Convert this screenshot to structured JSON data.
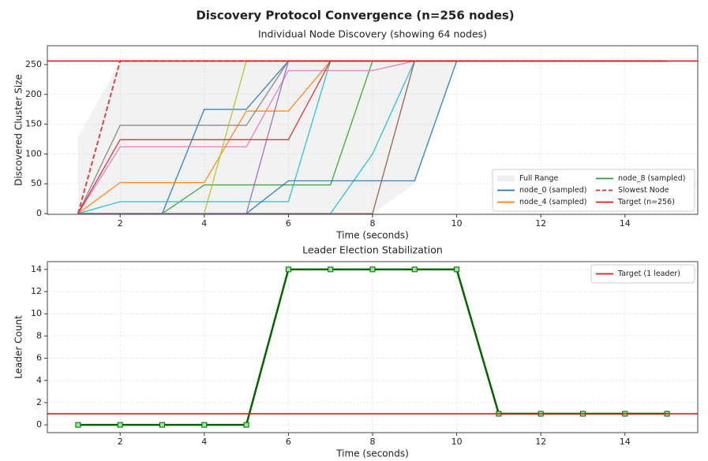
{
  "suptitle": "Discovery Protocol Convergence (n=256 nodes)",
  "chart_data": [
    {
      "type": "line",
      "title": "Individual Node Discovery (showing 64 nodes)",
      "xlabel": "Time (seconds)",
      "ylabel": "Discovered Cluster Size",
      "xlim": [
        0.27,
        15.73
      ],
      "ylim": [
        -1.3,
        281.7
      ],
      "xticks": [
        2,
        4,
        6,
        8,
        10,
        12,
        14
      ],
      "yticks": [
        0,
        50,
        100,
        150,
        200,
        250
      ],
      "grid": true,
      "legend": "lower right",
      "legend_columns": 2,
      "x": [
        1,
        2,
        3,
        4,
        5,
        6,
        7,
        8,
        9,
        10,
        11,
        12,
        13,
        14,
        15
      ],
      "range": {
        "name": "Full Range",
        "color": "#d9d9d9",
        "min": [
          0,
          0,
          0,
          0,
          0,
          0,
          0,
          0,
          50,
          256,
          256,
          256,
          256,
          256,
          256
        ],
        "max": [
          128,
          256,
          256,
          256,
          256,
          256,
          256,
          256,
          256,
          256,
          256,
          256,
          256,
          256,
          256
        ]
      },
      "series": [
        {
          "name": "node_0 (sampled)",
          "color": "#1f77b4",
          "values": [
            0,
            0,
            0,
            175,
            175,
            256,
            256,
            256,
            256,
            256,
            256,
            256,
            256,
            256,
            256
          ]
        },
        {
          "name": "node_4 (sampled)",
          "color": "#ff7f0e",
          "values": [
            0,
            52,
            52,
            52,
            172,
            172,
            256,
            256,
            256,
            256,
            256,
            256,
            256,
            256,
            256
          ]
        },
        {
          "name": "node_8 (sampled)",
          "color": "#2ca02c",
          "values": [
            0,
            0,
            0,
            48,
            48,
            48,
            48,
            256,
            256,
            256,
            256,
            256,
            256,
            256,
            256
          ]
        },
        {
          "name": "Slowest Node",
          "color": "#d62728",
          "dash": true,
          "values": [
            0,
            256,
            256,
            256,
            256,
            256,
            256,
            256,
            256,
            256,
            256,
            256,
            256,
            256,
            256
          ]
        },
        {
          "color": "#17becf",
          "values": [
            0,
            20,
            20,
            20,
            20,
            20,
            256,
            256,
            256,
            256,
            256,
            256,
            256,
            256,
            256
          ]
        },
        {
          "color": "#17becf",
          "values": [
            0,
            0,
            0,
            0,
            0,
            0,
            0,
            100,
            256,
            256,
            256,
            256,
            256,
            256,
            256
          ]
        },
        {
          "color": "#1f77b4",
          "values": [
            0,
            0,
            0,
            0,
            0,
            55,
            55,
            55,
            55,
            256,
            256,
            256,
            256,
            256,
            256
          ]
        },
        {
          "color": "#7f7f7f",
          "values": [
            0,
            148,
            148,
            148,
            148,
            256,
            256,
            256,
            256,
            256,
            256,
            256,
            256,
            256,
            256
          ]
        },
        {
          "color": "#e377c2",
          "values": [
            0,
            112,
            112,
            112,
            112,
            240,
            240,
            240,
            256,
            256,
            256,
            256,
            256,
            256,
            256
          ]
        },
        {
          "color": "#8c564b",
          "values": [
            0,
            0,
            0,
            0,
            0,
            0,
            0,
            0,
            256,
            256,
            256,
            256,
            256,
            256,
            256
          ]
        },
        {
          "color": "#bcbd22",
          "values": [
            0,
            0,
            0,
            0,
            256,
            256,
            256,
            256,
            256,
            256,
            256,
            256,
            256,
            256,
            256
          ]
        },
        {
          "color": "#9467bd",
          "values": [
            0,
            0,
            0,
            0,
            0,
            256,
            256,
            256,
            256,
            256,
            256,
            256,
            256,
            256,
            256
          ]
        },
        {
          "color": "#d62728",
          "values": [
            0,
            124,
            124,
            124,
            124,
            124,
            256,
            256,
            256,
            256,
            256,
            256,
            256,
            256,
            256
          ]
        }
      ],
      "hlines": [
        {
          "name": "Target (n=256)",
          "value": 256,
          "color": "#e41a1c"
        }
      ]
    },
    {
      "type": "line",
      "title": "Leader Election Stabilization",
      "xlabel": "Time (seconds)",
      "ylabel": "Leader Count",
      "xlim": [
        0.27,
        15.73
      ],
      "ylim": [
        -0.7,
        14.7
      ],
      "xticks": [
        2,
        4,
        6,
        8,
        10,
        12,
        14
      ],
      "yticks": [
        0,
        2,
        4,
        6,
        8,
        10,
        12,
        14
      ],
      "grid": true,
      "legend": "upper right",
      "legend_columns": 1,
      "x": [
        1,
        2,
        3,
        4,
        5,
        6,
        7,
        8,
        9,
        10,
        11,
        12,
        13,
        14,
        15
      ],
      "series": [
        {
          "color": "#006400",
          "marker": "square",
          "marker_color": "#90ee90",
          "values": [
            0,
            0,
            0,
            0,
            0,
            14,
            14,
            14,
            14,
            14,
            1,
            1,
            1,
            1,
            1
          ]
        }
      ],
      "hlines": [
        {
          "name": "Target (1 leader)",
          "value": 1,
          "color": "#e41a1c"
        }
      ]
    }
  ]
}
